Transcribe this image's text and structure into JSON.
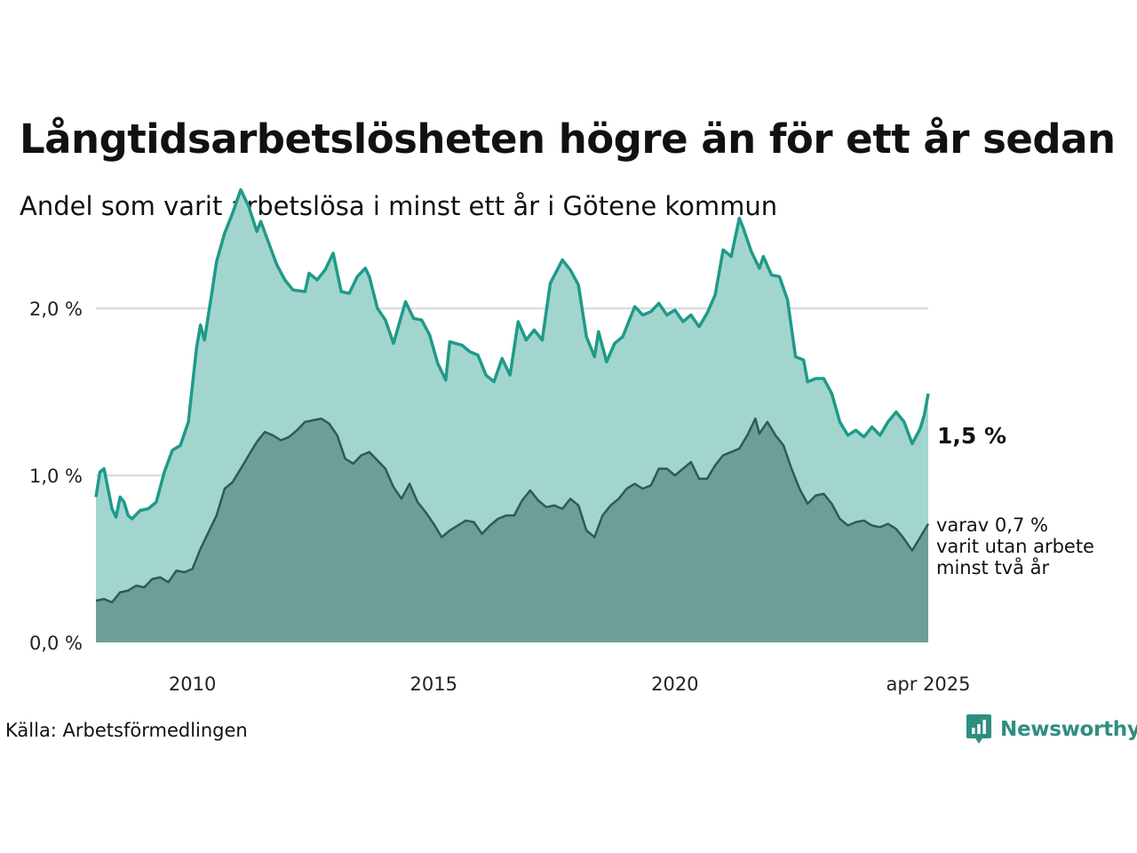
{
  "title": "Långtidsarbetslösheten högre än för ett år sedan",
  "subtitle": "Andel som varit arbetslösa i minst ett år i Götene kommun",
  "source": "Källa: Arbetsförmedlingen",
  "brand": {
    "name": "Newsworthy",
    "icon": "newsworthy-logo-icon",
    "color": "#2e8f80"
  },
  "end_label": "1,5 %",
  "sub_label": [
    "varav 0,7 %",
    "varit utan arbete",
    "minst två år"
  ],
  "colors": {
    "line_main": "#1f9a89",
    "area_main": "#a3d5cf",
    "line_sub": "#2d5c55",
    "area_sub": "#6f9e97",
    "grid": "#dddddd"
  },
  "chart_data": {
    "type": "area",
    "x_start": "2008-01",
    "x_end": "2025-04",
    "x_ticks": [
      {
        "date": "2010-01",
        "label": "2010"
      },
      {
        "date": "2015-01",
        "label": "2015"
      },
      {
        "date": "2020-01",
        "label": "2020"
      },
      {
        "date": "2025-04",
        "label": "apr 2025"
      }
    ],
    "ylim": [
      0,
      2.5
    ],
    "y_ticks": [
      {
        "value": 0,
        "label": "0,0 %"
      },
      {
        "value": 1,
        "label": "1,0 %"
      },
      {
        "value": 2,
        "label": "2,0 %"
      }
    ],
    "grid": true,
    "series": [
      {
        "points": [
          [
            "2008-01",
            0.87
          ],
          [
            "2008-02",
            1.02
          ],
          [
            "2008-03",
            1.04
          ],
          [
            "2008-05",
            0.8
          ],
          [
            "2008-06",
            0.75
          ],
          [
            "2008-07",
            0.87
          ],
          [
            "2008-08",
            0.84
          ],
          [
            "2008-09",
            0.76
          ],
          [
            "2008-10",
            0.74
          ],
          [
            "2008-12",
            0.79
          ],
          [
            "2009-02",
            0.8
          ],
          [
            "2009-04",
            0.84
          ],
          [
            "2009-06",
            1.02
          ],
          [
            "2009-08",
            1.15
          ],
          [
            "2009-10",
            1.18
          ],
          [
            "2009-12",
            1.32
          ],
          [
            "2010-02",
            1.76
          ],
          [
            "2010-03",
            1.9
          ],
          [
            "2010-04",
            1.81
          ],
          [
            "2010-06",
            2.12
          ],
          [
            "2010-07",
            2.28
          ],
          [
            "2010-09",
            2.45
          ],
          [
            "2010-11",
            2.57
          ],
          [
            "2011-01",
            2.71
          ],
          [
            "2011-03",
            2.61
          ],
          [
            "2011-05",
            2.46
          ],
          [
            "2011-06",
            2.52
          ],
          [
            "2011-08",
            2.39
          ],
          [
            "2011-10",
            2.26
          ],
          [
            "2011-12",
            2.17
          ],
          [
            "2012-02",
            2.11
          ],
          [
            "2012-05",
            2.1
          ],
          [
            "2012-06",
            2.21
          ],
          [
            "2012-08",
            2.17
          ],
          [
            "2012-10",
            2.23
          ],
          [
            "2012-12",
            2.33
          ],
          [
            "2013-02",
            2.1
          ],
          [
            "2013-04",
            2.09
          ],
          [
            "2013-06",
            2.19
          ],
          [
            "2013-08",
            2.24
          ],
          [
            "2013-09",
            2.19
          ],
          [
            "2013-11",
            2.0
          ],
          [
            "2014-01",
            1.93
          ],
          [
            "2014-03",
            1.79
          ],
          [
            "2014-06",
            2.04
          ],
          [
            "2014-08",
            1.94
          ],
          [
            "2014-10",
            1.93
          ],
          [
            "2014-12",
            1.84
          ],
          [
            "2015-02",
            1.67
          ],
          [
            "2015-04",
            1.57
          ],
          [
            "2015-05",
            1.8
          ],
          [
            "2015-08",
            1.78
          ],
          [
            "2015-10",
            1.74
          ],
          [
            "2015-12",
            1.72
          ],
          [
            "2016-02",
            1.6
          ],
          [
            "2016-04",
            1.56
          ],
          [
            "2016-06",
            1.7
          ],
          [
            "2016-08",
            1.6
          ],
          [
            "2016-10",
            1.92
          ],
          [
            "2016-12",
            1.81
          ],
          [
            "2017-02",
            1.87
          ],
          [
            "2017-04",
            1.81
          ],
          [
            "2017-06",
            2.15
          ],
          [
            "2017-09",
            2.29
          ],
          [
            "2017-11",
            2.23
          ],
          [
            "2018-01",
            2.14
          ],
          [
            "2018-03",
            1.83
          ],
          [
            "2018-05",
            1.71
          ],
          [
            "2018-06",
            1.86
          ],
          [
            "2018-08",
            1.68
          ],
          [
            "2018-10",
            1.79
          ],
          [
            "2018-12",
            1.83
          ],
          [
            "2019-03",
            2.01
          ],
          [
            "2019-05",
            1.96
          ],
          [
            "2019-07",
            1.98
          ],
          [
            "2019-09",
            2.03
          ],
          [
            "2019-11",
            1.96
          ],
          [
            "2020-01",
            1.99
          ],
          [
            "2020-03",
            1.92
          ],
          [
            "2020-05",
            1.96
          ],
          [
            "2020-07",
            1.89
          ],
          [
            "2020-09",
            1.97
          ],
          [
            "2020-11",
            2.08
          ],
          [
            "2021-01",
            2.35
          ],
          [
            "2021-03",
            2.31
          ],
          [
            "2021-05",
            2.54
          ],
          [
            "2021-06",
            2.48
          ],
          [
            "2021-08",
            2.34
          ],
          [
            "2021-10",
            2.24
          ],
          [
            "2021-11",
            2.31
          ],
          [
            "2022-01",
            2.2
          ],
          [
            "2022-03",
            2.19
          ],
          [
            "2022-05",
            2.05
          ],
          [
            "2022-07",
            1.71
          ],
          [
            "2022-09",
            1.69
          ],
          [
            "2022-10",
            1.56
          ],
          [
            "2022-12",
            1.58
          ],
          [
            "2023-02",
            1.58
          ],
          [
            "2023-04",
            1.49
          ],
          [
            "2023-06",
            1.32
          ],
          [
            "2023-08",
            1.24
          ],
          [
            "2023-10",
            1.27
          ],
          [
            "2023-12",
            1.23
          ],
          [
            "2024-02",
            1.29
          ],
          [
            "2024-04",
            1.24
          ],
          [
            "2024-06",
            1.32
          ],
          [
            "2024-08",
            1.38
          ],
          [
            "2024-10",
            1.32
          ],
          [
            "2024-12",
            1.19
          ],
          [
            "2025-02",
            1.28
          ],
          [
            "2025-03",
            1.36
          ],
          [
            "2025-04",
            1.49
          ]
        ]
      },
      {
        "points": [
          [
            "2008-01",
            0.25
          ],
          [
            "2008-03",
            0.26
          ],
          [
            "2008-05",
            0.24
          ],
          [
            "2008-07",
            0.3
          ],
          [
            "2008-09",
            0.31
          ],
          [
            "2008-11",
            0.34
          ],
          [
            "2009-01",
            0.33
          ],
          [
            "2009-03",
            0.38
          ],
          [
            "2009-05",
            0.39
          ],
          [
            "2009-07",
            0.36
          ],
          [
            "2009-09",
            0.43
          ],
          [
            "2009-11",
            0.42
          ],
          [
            "2010-01",
            0.44
          ],
          [
            "2010-03",
            0.56
          ],
          [
            "2010-05",
            0.66
          ],
          [
            "2010-07",
            0.76
          ],
          [
            "2010-09",
            0.92
          ],
          [
            "2010-11",
            0.96
          ],
          [
            "2011-01",
            1.04
          ],
          [
            "2011-03",
            1.12
          ],
          [
            "2011-05",
            1.2
          ],
          [
            "2011-07",
            1.26
          ],
          [
            "2011-09",
            1.24
          ],
          [
            "2011-11",
            1.21
          ],
          [
            "2012-01",
            1.23
          ],
          [
            "2012-03",
            1.27
          ],
          [
            "2012-05",
            1.32
          ],
          [
            "2012-07",
            1.33
          ],
          [
            "2012-09",
            1.34
          ],
          [
            "2012-11",
            1.31
          ],
          [
            "2013-01",
            1.24
          ],
          [
            "2013-03",
            1.1
          ],
          [
            "2013-05",
            1.07
          ],
          [
            "2013-07",
            1.12
          ],
          [
            "2013-09",
            1.14
          ],
          [
            "2013-11",
            1.09
          ],
          [
            "2014-01",
            1.04
          ],
          [
            "2014-03",
            0.93
          ],
          [
            "2014-05",
            0.86
          ],
          [
            "2014-07",
            0.95
          ],
          [
            "2014-09",
            0.84
          ],
          [
            "2014-11",
            0.78
          ],
          [
            "2015-01",
            0.71
          ],
          [
            "2015-03",
            0.63
          ],
          [
            "2015-05",
            0.67
          ],
          [
            "2015-07",
            0.7
          ],
          [
            "2015-09",
            0.73
          ],
          [
            "2015-11",
            0.72
          ],
          [
            "2016-01",
            0.65
          ],
          [
            "2016-03",
            0.7
          ],
          [
            "2016-05",
            0.74
          ],
          [
            "2016-07",
            0.76
          ],
          [
            "2016-09",
            0.76
          ],
          [
            "2016-11",
            0.85
          ],
          [
            "2017-01",
            0.91
          ],
          [
            "2017-03",
            0.85
          ],
          [
            "2017-05",
            0.81
          ],
          [
            "2017-07",
            0.82
          ],
          [
            "2017-09",
            0.8
          ],
          [
            "2017-11",
            0.86
          ],
          [
            "2018-01",
            0.82
          ],
          [
            "2018-03",
            0.67
          ],
          [
            "2018-05",
            0.63
          ],
          [
            "2018-07",
            0.76
          ],
          [
            "2018-09",
            0.82
          ],
          [
            "2018-11",
            0.86
          ],
          [
            "2019-01",
            0.92
          ],
          [
            "2019-03",
            0.95
          ],
          [
            "2019-05",
            0.92
          ],
          [
            "2019-07",
            0.94
          ],
          [
            "2019-09",
            1.04
          ],
          [
            "2019-11",
            1.04
          ],
          [
            "2020-01",
            1.0
          ],
          [
            "2020-03",
            1.04
          ],
          [
            "2020-05",
            1.08
          ],
          [
            "2020-07",
            0.98
          ],
          [
            "2020-09",
            0.98
          ],
          [
            "2020-11",
            1.06
          ],
          [
            "2021-01",
            1.12
          ],
          [
            "2021-03",
            1.14
          ],
          [
            "2021-05",
            1.16
          ],
          [
            "2021-07",
            1.24
          ],
          [
            "2021-09",
            1.34
          ],
          [
            "2021-10",
            1.25
          ],
          [
            "2021-12",
            1.32
          ],
          [
            "2022-02",
            1.24
          ],
          [
            "2022-04",
            1.18
          ],
          [
            "2022-06",
            1.04
          ],
          [
            "2022-08",
            0.92
          ],
          [
            "2022-10",
            0.83
          ],
          [
            "2022-12",
            0.88
          ],
          [
            "2023-02",
            0.89
          ],
          [
            "2023-04",
            0.83
          ],
          [
            "2023-06",
            0.74
          ],
          [
            "2023-08",
            0.7
          ],
          [
            "2023-10",
            0.72
          ],
          [
            "2023-12",
            0.73
          ],
          [
            "2024-02",
            0.7
          ],
          [
            "2024-04",
            0.69
          ],
          [
            "2024-06",
            0.71
          ],
          [
            "2024-08",
            0.68
          ],
          [
            "2024-10",
            0.62
          ],
          [
            "2024-12",
            0.55
          ],
          [
            "2025-02",
            0.63
          ],
          [
            "2025-04",
            0.71
          ]
        ]
      }
    ]
  }
}
